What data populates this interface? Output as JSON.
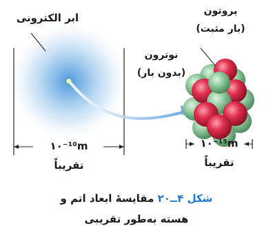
{
  "figure": {
    "cloud_label": "ابر الکترونی",
    "proton_label": "پروتون",
    "proton_charge": "(بار مثبت)",
    "neutron_label": "نوترون",
    "neutron_charge": "(بدون بار)",
    "atom_size": "۱۰⁻¹⁰m",
    "atom_approx": "تقریباً",
    "nucleus_size": "۱۰⁻¹⁵m",
    "nucleus_approx": "تقریباً",
    "caption_word": "شکل",
    "caption_number": "۴ــ۲۰",
    "caption_line1": "مقایسهٔ ابعاد اتم و",
    "caption_line2": "هسته به‌طور تقریبی"
  },
  "colors": {
    "cloud": "#2e86d6",
    "proton": "#e0304f",
    "neutron": "#7fbf8f",
    "caption_accent": "#1f78c8",
    "arrow": "#7fb3e6"
  }
}
